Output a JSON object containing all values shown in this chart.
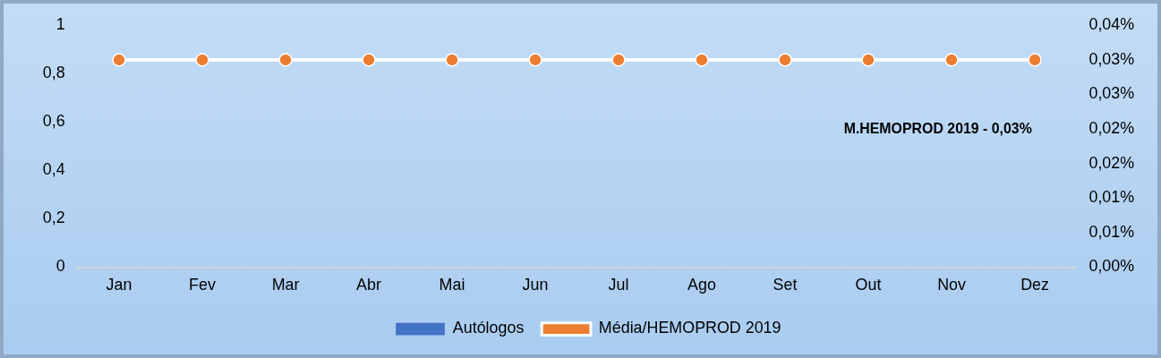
{
  "chart_data": {
    "type": "bar",
    "categories": [
      "Jan",
      "Fev",
      "Mar",
      "Abr",
      "Mai",
      "Jun",
      "Jul",
      "Ago",
      "Set",
      "Out",
      "Nov",
      "Dez"
    ],
    "series": [
      {
        "name": "Autólogos",
        "color": "#4472c4",
        "values": [
          0,
          0,
          0,
          0,
          0,
          0,
          0,
          0,
          0,
          0,
          0,
          0
        ]
      },
      {
        "name": "Média/HEMOPROD 2019",
        "type": "line",
        "axis": "y2",
        "color": "#ed7d31",
        "values": [
          0.03,
          0.03,
          0.03,
          0.03,
          0.03,
          0.03,
          0.03,
          0.03,
          0.03,
          0.03,
          0.03,
          0.03
        ]
      }
    ],
    "ylim": [
      0,
      1
    ],
    "yticks": [
      {
        "value": 0,
        "label": "0"
      },
      {
        "value": 0.2,
        "label": "0,2"
      },
      {
        "value": 0.4,
        "label": "0,4"
      },
      {
        "value": 0.6,
        "label": "0,6"
      },
      {
        "value": 0.8,
        "label": "0,8"
      },
      {
        "value": 1,
        "label": "1"
      }
    ],
    "y2lim": [
      0,
      0.035
    ],
    "y2ticks": [
      {
        "value": 0,
        "label": "0,00%"
      },
      {
        "value": 0.005,
        "label": "0,01%"
      },
      {
        "value": 0.01,
        "label": "0,01%"
      },
      {
        "value": 0.015,
        "label": "0,02%"
      },
      {
        "value": 0.02,
        "label": "0,02%"
      },
      {
        "value": 0.025,
        "label": "0,03%"
      },
      {
        "value": 0.03,
        "label": "0,03%"
      },
      {
        "value": 0.035,
        "label": "0,04%"
      }
    ],
    "annotations": [
      "M.HEMOPROD 2019 - 0,03%"
    ],
    "grid": false,
    "legend": "bottom",
    "marker": "circle",
    "line_style": "solid"
  }
}
